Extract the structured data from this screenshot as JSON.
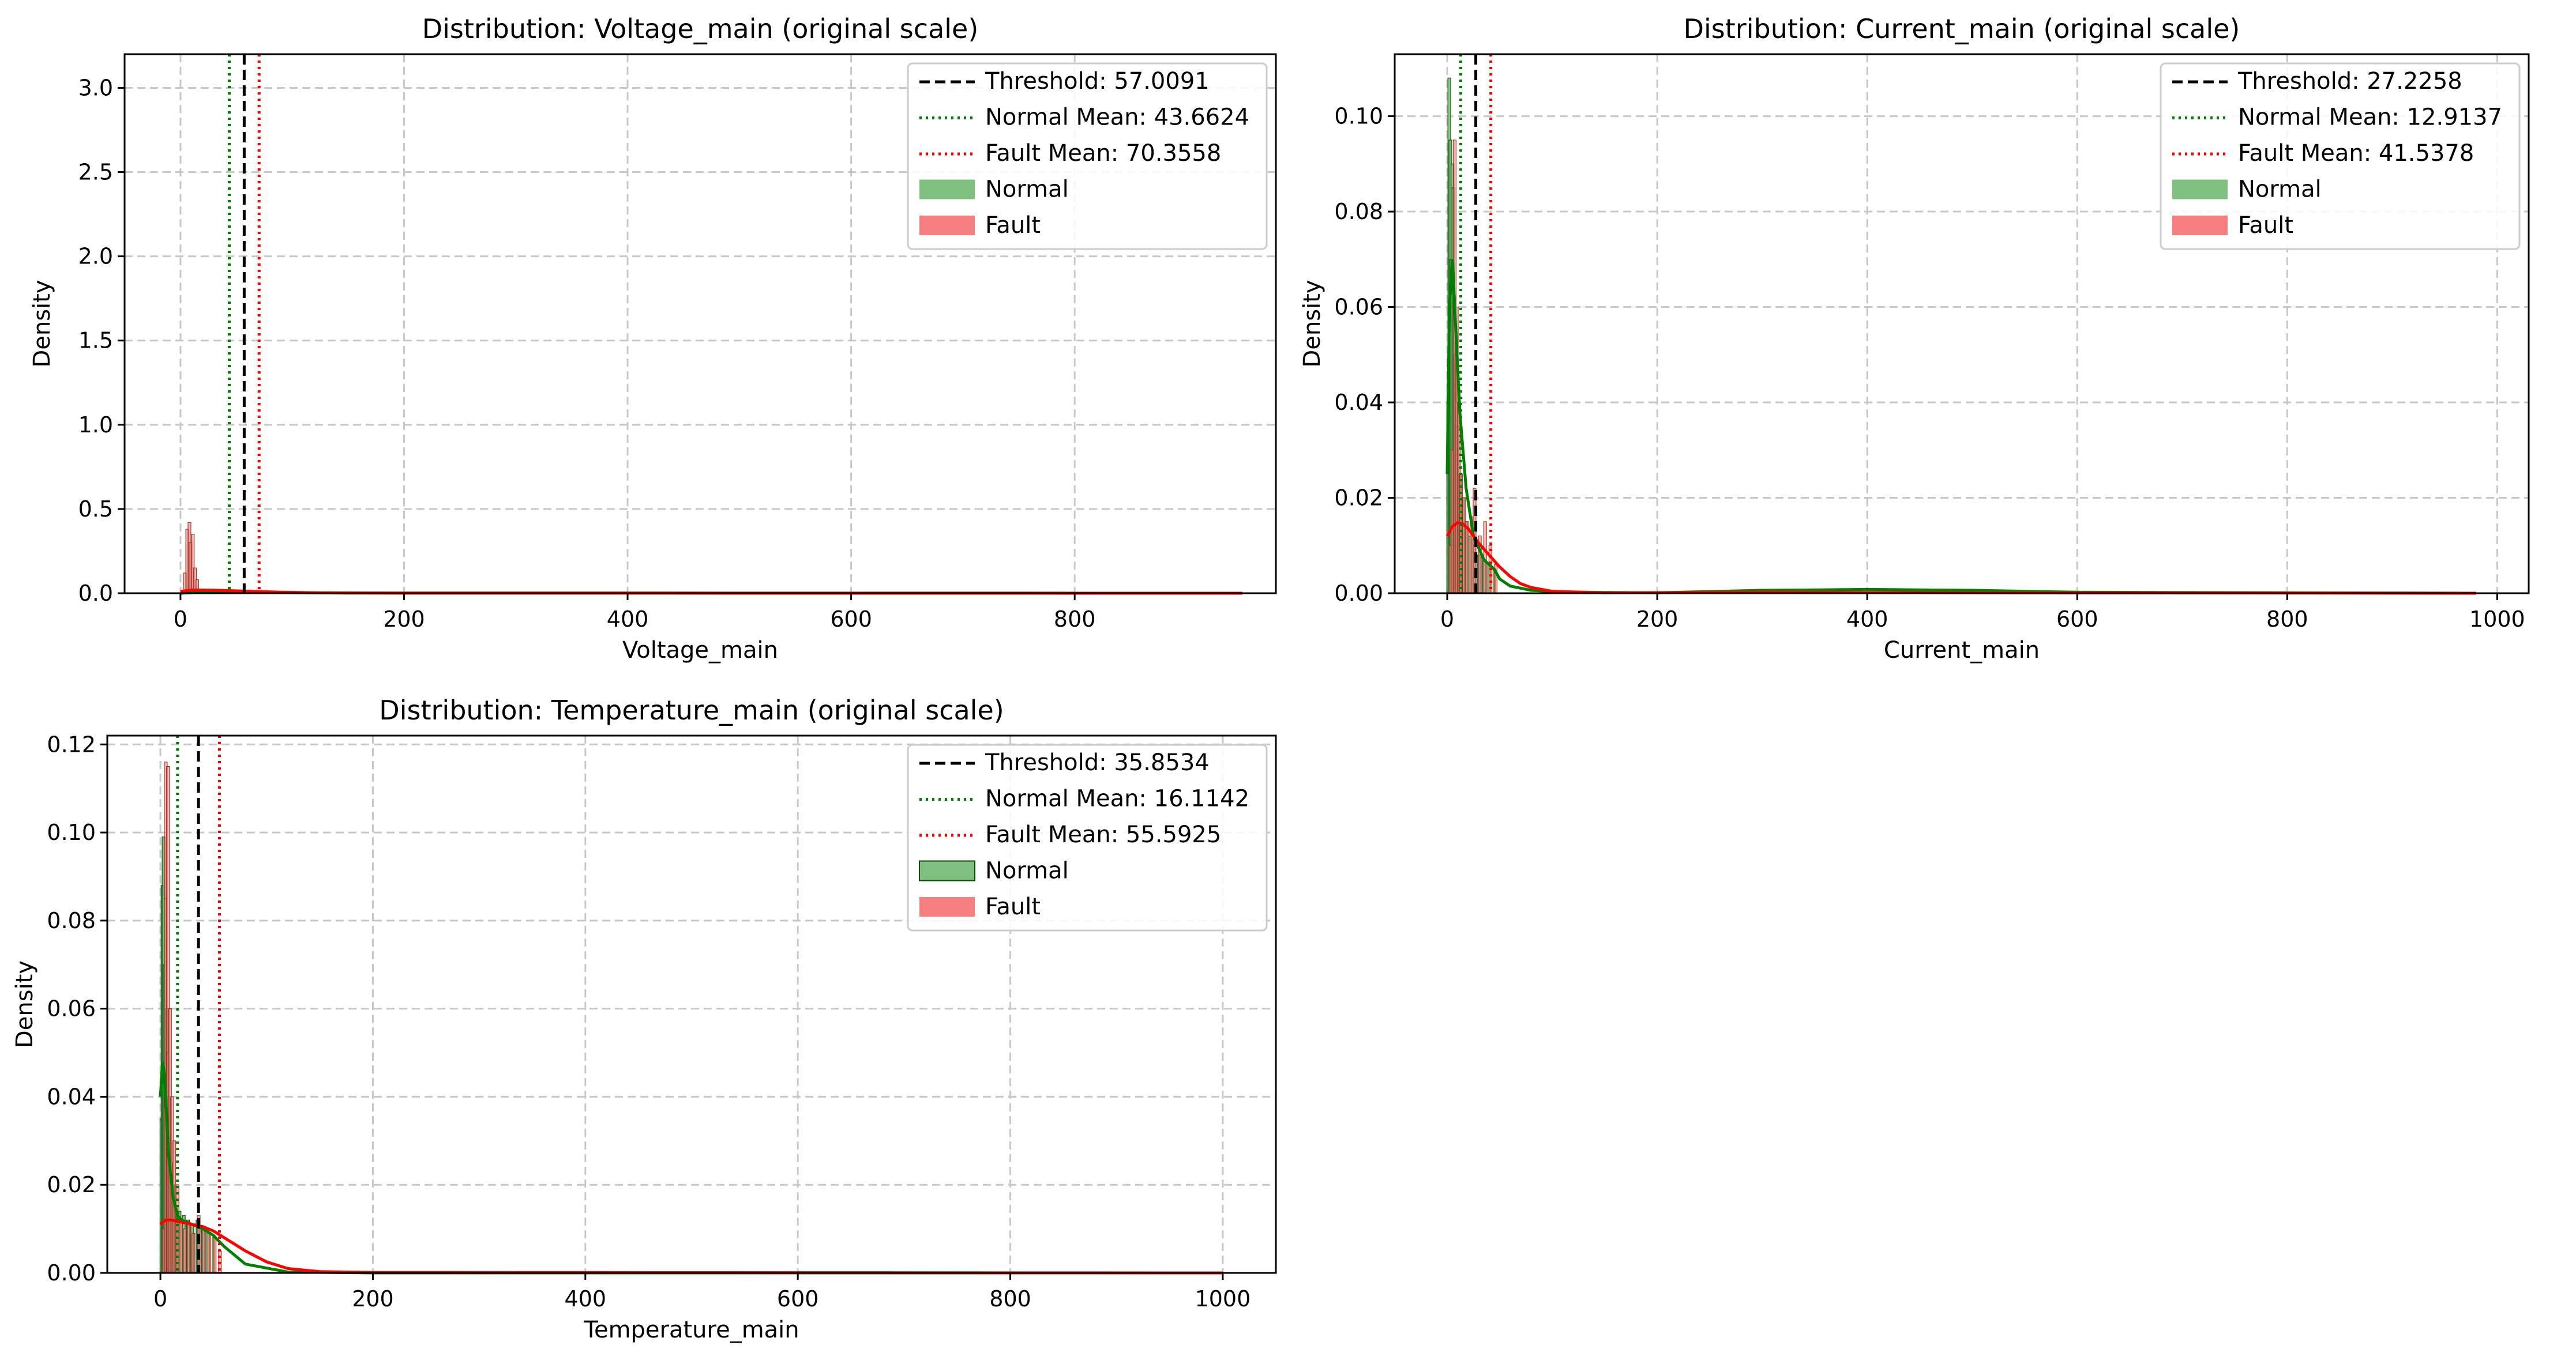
{
  "colors": {
    "normal_fill": "#7fbf7f",
    "normal_edge": "#0a4d0a",
    "normal_kde": "#008000",
    "fault_fill": "#f77e7e",
    "fault_kde": "#ff0000",
    "fault_bar_overlap": "#8b2a18",
    "threshold": "#000000",
    "grid": "#c8c8c8"
  },
  "chart_data": [
    {
      "type": "histogram",
      "title": "Distribution: Voltage_main (original scale)",
      "xlabel": "Voltage_main",
      "ylabel": "Density",
      "xlim": [
        -50,
        980
      ],
      "ylim": [
        0,
        3.2
      ],
      "xticks": [
        0,
        200,
        400,
        600,
        800
      ],
      "yticks": [
        0.0,
        0.5,
        1.0,
        1.5,
        2.0,
        2.5,
        3.0
      ],
      "grid": true,
      "legend_position": "top-right",
      "threshold": 57.0091,
      "normal_mean": 43.6624,
      "fault_mean": 70.3558,
      "legend": [
        "Threshold: 57.0091",
        "Normal Mean: 43.6624",
        "Fault Mean: 70.3558",
        "Normal",
        "Fault"
      ],
      "normal_hist": {
        "x": [],
        "y": []
      },
      "fault_hist": {
        "x": [
          3,
          5,
          7,
          8,
          10,
          12,
          14
        ],
        "y": [
          0.12,
          0.38,
          0.42,
          0.3,
          0.35,
          0.15,
          0.08
        ]
      },
      "normal_kde": {
        "x": [
          0,
          20,
          40,
          60,
          80,
          100,
          150,
          950
        ],
        "y": [
          0.0,
          0.006,
          0.01,
          0.01,
          0.006,
          0.003,
          0.001,
          0.0
        ]
      },
      "fault_kde": {
        "x": [
          0,
          10,
          30,
          60,
          90,
          120,
          200,
          950
        ],
        "y": [
          0.01,
          0.02,
          0.018,
          0.012,
          0.006,
          0.003,
          0.001,
          0.0
        ]
      }
    },
    {
      "type": "histogram",
      "title": "Distribution: Current_main (original scale)",
      "xlabel": "Current_main",
      "ylabel": "Density",
      "xlim": [
        -50,
        1030
      ],
      "ylim": [
        0,
        0.113
      ],
      "xticks": [
        0,
        200,
        400,
        600,
        800,
        1000
      ],
      "yticks": [
        0.0,
        0.02,
        0.04,
        0.06,
        0.08,
        0.1
      ],
      "grid": true,
      "legend_position": "top-right",
      "threshold": 27.2258,
      "normal_mean": 12.9137,
      "fault_mean": 41.5378,
      "legend": [
        "Threshold: 27.2258",
        "Normal Mean: 12.9137",
        "Fault Mean: 41.5378",
        "Normal",
        "Fault"
      ],
      "normal_hist": {
        "x": [
          1,
          2,
          3,
          4,
          5,
          6,
          7,
          8,
          9,
          10,
          12,
          15,
          18,
          22,
          26,
          30,
          35,
          40,
          45
        ],
        "y": [
          0.04,
          0.108,
          0.095,
          0.07,
          0.09,
          0.085,
          0.062,
          0.05,
          0.04,
          0.035,
          0.025,
          0.02,
          0.015,
          0.012,
          0.01,
          0.008,
          0.007,
          0.006,
          0.005
        ]
      },
      "fault_hist": {
        "x": [
          2,
          4,
          6,
          8,
          10,
          12,
          15,
          18,
          22,
          25,
          30,
          35,
          40,
          45
        ],
        "y": [
          0.01,
          0.03,
          0.095,
          0.06,
          0.04,
          0.025,
          0.02,
          0.015,
          0.016,
          0.022,
          0.012,
          0.015,
          0.01,
          0.006
        ]
      },
      "normal_kde": {
        "x": [
          0,
          2,
          5,
          8,
          12,
          18,
          25,
          35,
          45,
          50,
          60,
          80,
          120,
          200,
          300,
          400,
          500,
          600,
          800,
          980
        ],
        "y": [
          0.025,
          0.06,
          0.07,
          0.056,
          0.038,
          0.022,
          0.012,
          0.007,
          0.005,
          0.003,
          0.0015,
          0.0006,
          0.0002,
          0.0001,
          0.0006,
          0.0008,
          0.0006,
          0.0002,
          0.0001,
          0.0
        ]
      },
      "fault_kde": {
        "x": [
          0,
          5,
          10,
          15,
          20,
          25,
          30,
          40,
          50,
          60,
          70,
          80,
          100,
          150,
          300,
          500,
          980
        ],
        "y": [
          0.012,
          0.014,
          0.0148,
          0.0145,
          0.0135,
          0.012,
          0.0105,
          0.008,
          0.0055,
          0.0035,
          0.002,
          0.0012,
          0.0004,
          0.0001,
          0.0002,
          0.0001,
          0.0
        ]
      }
    },
    {
      "type": "histogram",
      "title": "Distribution: Temperature_main (original scale)",
      "xlabel": "Temperature_main",
      "ylabel": "Density",
      "xlim": [
        -50,
        1050
      ],
      "ylim": [
        0,
        0.122
      ],
      "xticks": [
        0,
        200,
        400,
        600,
        800,
        1000
      ],
      "yticks": [
        0.0,
        0.02,
        0.04,
        0.06,
        0.08,
        0.1,
        0.12
      ],
      "grid": true,
      "legend_position": "top-right",
      "threshold": 35.8534,
      "normal_mean": 16.1142,
      "fault_mean": 55.5925,
      "legend": [
        "Threshold: 35.8534",
        "Normal Mean: 16.1142",
        "Fault Mean: 55.5925",
        "Normal",
        "Fault"
      ],
      "normal_hist": {
        "x": [
          1,
          2,
          3,
          4,
          5,
          6,
          7,
          8,
          10,
          12,
          15,
          18,
          22,
          26,
          30,
          35,
          40,
          45,
          50
        ],
        "y": [
          0.035,
          0.088,
          0.099,
          0.07,
          0.085,
          0.06,
          0.05,
          0.04,
          0.025,
          0.02,
          0.015,
          0.014,
          0.013,
          0.012,
          0.011,
          0.012,
          0.01,
          0.009,
          0.008
        ]
      },
      "fault_hist": {
        "x": [
          2,
          4,
          6,
          8,
          10,
          12,
          15,
          18,
          22,
          26,
          30,
          35,
          40,
          45,
          50,
          55
        ],
        "y": [
          0.01,
          0.116,
          0.115,
          0.06,
          0.04,
          0.03,
          0.02,
          0.012,
          0.01,
          0.011,
          0.009,
          0.013,
          0.01,
          0.009,
          0.008,
          0.005
        ]
      },
      "normal_kde": {
        "x": [
          0,
          2,
          4,
          6,
          8,
          12,
          16,
          20,
          30,
          40,
          50,
          60,
          80,
          120,
          200,
          1000
        ],
        "y": [
          0.04,
          0.048,
          0.045,
          0.035,
          0.026,
          0.017,
          0.013,
          0.012,
          0.011,
          0.01,
          0.0085,
          0.006,
          0.002,
          0.0002,
          0.0,
          0.0
        ]
      },
      "fault_kde": {
        "x": [
          0,
          5,
          10,
          20,
          30,
          40,
          50,
          60,
          70,
          80,
          100,
          120,
          150,
          200,
          1000
        ],
        "y": [
          0.011,
          0.012,
          0.012,
          0.0115,
          0.011,
          0.0105,
          0.0095,
          0.008,
          0.0065,
          0.005,
          0.0025,
          0.001,
          0.0003,
          0.0001,
          0.0
        ]
      }
    }
  ]
}
